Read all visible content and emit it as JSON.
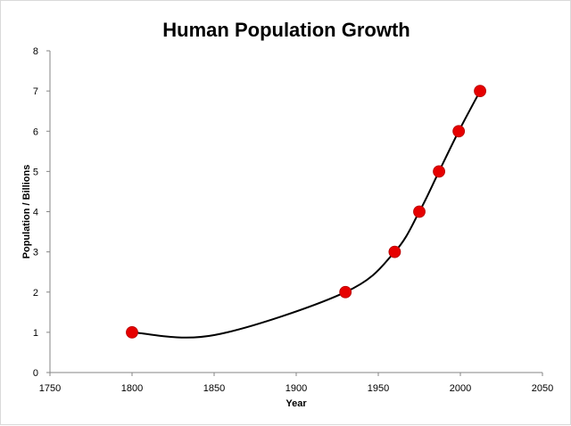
{
  "chart_data": {
    "type": "scatter",
    "title": "Human Population Growth",
    "xlabel": "Year",
    "ylabel": "Population / Billions",
    "xlim": [
      1750,
      2050
    ],
    "ylim": [
      0,
      8
    ],
    "x_ticks": [
      1750,
      1800,
      1850,
      1900,
      1950,
      2000,
      2050
    ],
    "y_ticks": [
      0,
      1,
      2,
      3,
      4,
      5,
      6,
      7,
      8
    ],
    "grid": false,
    "legend": "none",
    "trendline": "smoothed line",
    "series": [
      {
        "x": [
          1800,
          1930,
          1960,
          1975,
          1987,
          1999,
          2012
        ],
        "y": [
          1,
          2,
          3,
          4,
          5,
          6,
          7
        ],
        "marker_color": "#e60000",
        "line_color": "#000000"
      }
    ]
  }
}
